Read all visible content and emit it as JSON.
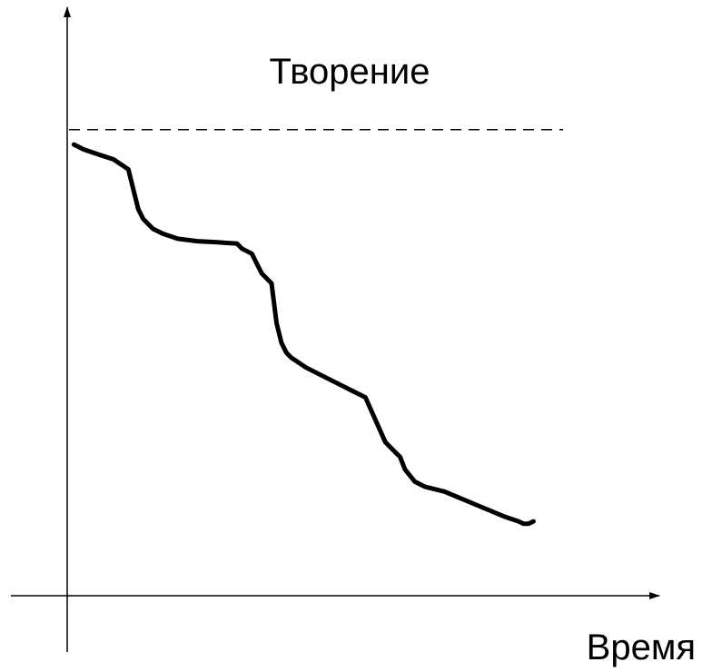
{
  "chart_data": {
    "type": "line",
    "title": "",
    "xlabel": "Время",
    "ylabel": "",
    "grid": false,
    "legend": "none",
    "xlim": [
      0,
      100
    ],
    "ylim": [
      0,
      100
    ],
    "reference_line": {
      "label": "Творение",
      "y": 94,
      "x_range": [
        0,
        100
      ],
      "style": "dashed"
    },
    "series": [
      {
        "x": [
          1,
          3,
          6,
          9,
          12,
          14,
          15,
          16,
          17,
          19,
          22,
          26,
          30,
          34,
          35,
          37,
          38,
          39,
          41,
          42,
          43,
          44,
          45,
          48,
          52,
          56,
          60,
          64,
          66,
          67,
          68,
          70,
          71,
          72,
          76,
          82,
          88,
          91,
          92,
          93,
          94
        ],
        "y": [
          91,
          90,
          89,
          88,
          86,
          78,
          76,
          75,
          74,
          73,
          72,
          71.5,
          71.3,
          71,
          70,
          69,
          67,
          65,
          63,
          55,
          51,
          49,
          48,
          46,
          44,
          42,
          40,
          31,
          29,
          28,
          25.5,
          23,
          22.5,
          22,
          21,
          18.5,
          16,
          15,
          14.5,
          14.5,
          15
        ]
      }
    ]
  }
}
